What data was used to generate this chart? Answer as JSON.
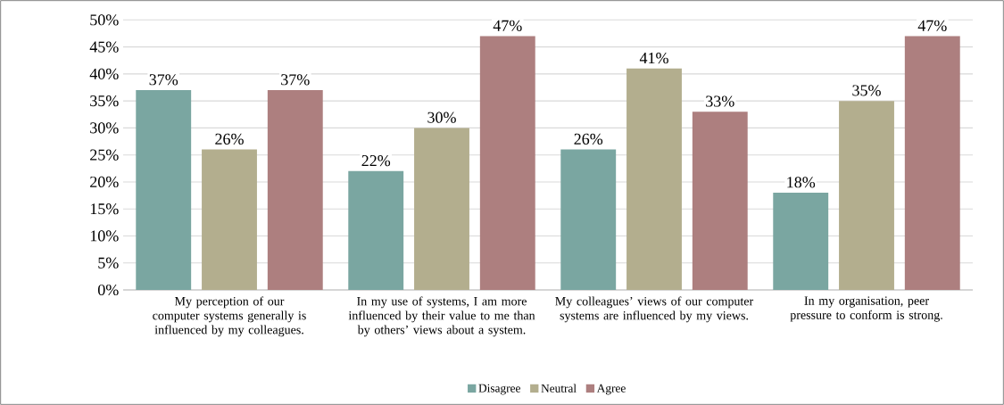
{
  "chart_data": {
    "type": "bar",
    "categories": [
      "My perception of our computer systems generally is influenced by my colleagues.",
      "In my use of systems, I am more influenced by their value to me than by others’ views about a system.",
      "My colleagues’ views of our computer systems are influenced by my views.",
      "In my organisation, peer pressure to conform is strong."
    ],
    "series": [
      {
        "name": "Disagree",
        "color": "#7aa6a1",
        "values": [
          37,
          22,
          26,
          18
        ],
        "value_labels": [
          "37%",
          "22%",
          "26%",
          "18%"
        ]
      },
      {
        "name": "Neutral",
        "color": "#b3ae8e",
        "values": [
          26,
          30,
          41,
          35
        ],
        "value_labels": [
          "26%",
          "30%",
          "41%",
          "35%"
        ]
      },
      {
        "name": "Agree",
        "color": "#ad7f7f",
        "values": [
          37,
          47,
          33,
          47
        ],
        "value_labels": [
          "37%",
          "47%",
          "33%",
          "47%"
        ]
      }
    ],
    "ylim": [
      0,
      50
    ],
    "yticks": [
      {
        "value": 0,
        "label": "0%"
      },
      {
        "value": 5,
        "label": "5%"
      },
      {
        "value": 10,
        "label": "10%"
      },
      {
        "value": 15,
        "label": "15%"
      },
      {
        "value": 20,
        "label": "20%"
      },
      {
        "value": 25,
        "label": "25%"
      },
      {
        "value": 30,
        "label": "30%"
      },
      {
        "value": 35,
        "label": "35%"
      },
      {
        "value": 40,
        "label": "40%"
      },
      {
        "value": 45,
        "label": "45%"
      },
      {
        "value": 50,
        "label": "50%"
      }
    ],
    "grid": "y",
    "legend": "bottom"
  }
}
